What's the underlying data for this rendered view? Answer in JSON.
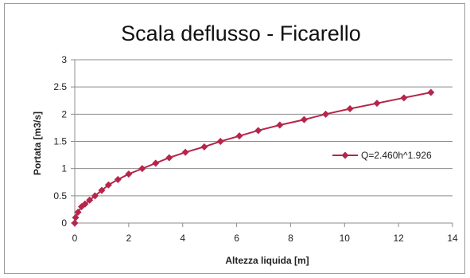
{
  "chart_data": {
    "type": "line",
    "title": "Scala deflusso - Ficarello",
    "xlabel": "Altezza liquida [m]",
    "ylabel": "Portata [m3/s]",
    "xlim": [
      0,
      14
    ],
    "ylim": [
      0,
      3
    ],
    "xticks": [
      "0",
      "2",
      "4",
      "6",
      "8",
      "10",
      "12",
      "14"
    ],
    "yticks": [
      "0",
      "0.5",
      "1",
      "1.5",
      "2",
      "2.5",
      "3"
    ],
    "grid": "horizontal",
    "legend_position": "right",
    "series": [
      {
        "name": "Q=2.460h^1.926",
        "color": "#b5264a",
        "marker": "diamond",
        "x": [
          0.0,
          0.03,
          0.12,
          0.25,
          0.38,
          0.55,
          0.75,
          1.0,
          1.25,
          1.6,
          2.0,
          2.5,
          3.0,
          3.5,
          4.1,
          4.8,
          5.4,
          6.1,
          6.8,
          7.6,
          8.5,
          9.3,
          10.2,
          11.2,
          12.2,
          13.2
        ],
        "y": [
          0.0,
          0.1,
          0.2,
          0.3,
          0.35,
          0.42,
          0.5,
          0.6,
          0.7,
          0.8,
          0.9,
          1.0,
          1.1,
          1.2,
          1.3,
          1.4,
          1.5,
          1.6,
          1.7,
          1.8,
          1.9,
          2.0,
          2.1,
          2.2,
          2.3,
          2.4
        ]
      }
    ]
  }
}
